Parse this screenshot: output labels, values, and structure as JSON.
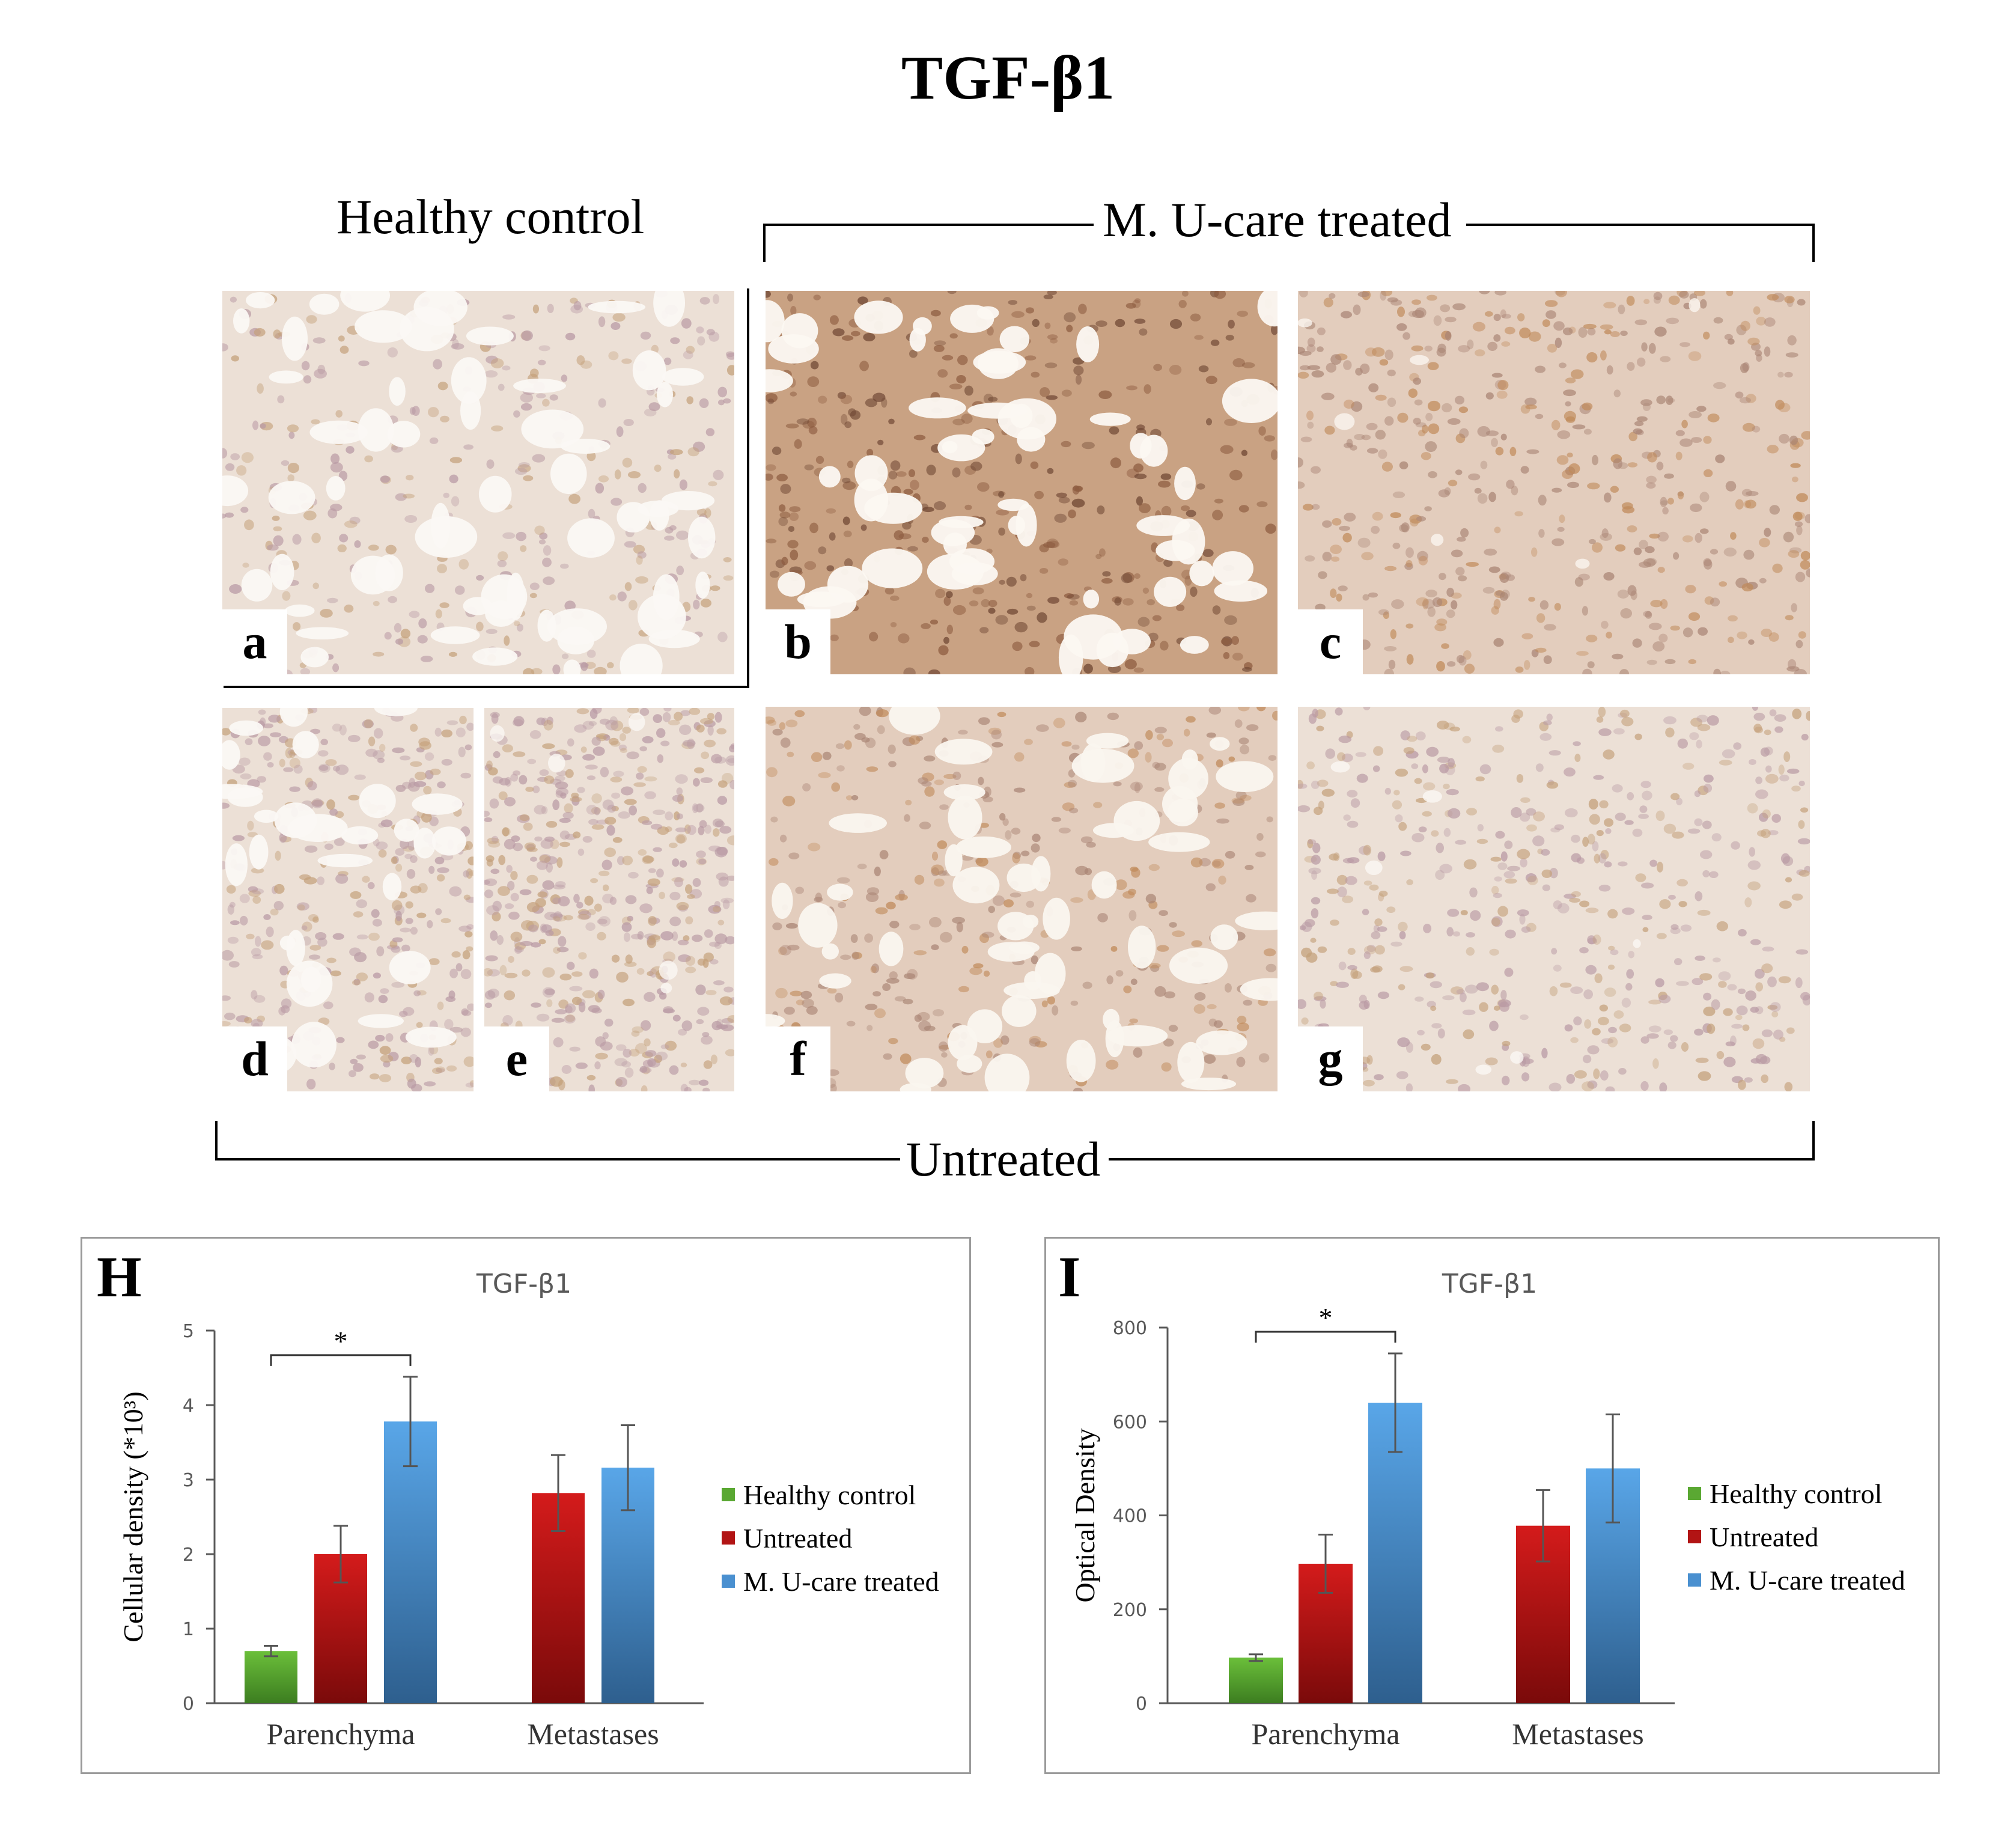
{
  "figure_title": "TGF-β1",
  "group_labels": {
    "healthy": "Healthy control",
    "treated": "M. U-care treated",
    "untreated": "Untreated"
  },
  "panels": [
    {
      "letter": "a",
      "stain": "light",
      "pattern": "alveolar"
    },
    {
      "letter": "b",
      "stain": "dark",
      "pattern": "alveolar"
    },
    {
      "letter": "c",
      "stain": "medium",
      "pattern": "solid"
    },
    {
      "letter": "d",
      "stain": "light",
      "pattern": "alveolar"
    },
    {
      "letter": "e",
      "stain": "light",
      "pattern": "solid"
    },
    {
      "letter": "f",
      "stain": "medium",
      "pattern": "alveolar"
    },
    {
      "letter": "g",
      "stain": "light",
      "pattern": "solid"
    }
  ],
  "colors": {
    "healthy": "#5aa832",
    "untreated": "#b21414",
    "treated": "#4a90d0",
    "axis": "#595959",
    "title": "#595959"
  },
  "chart_data": [
    {
      "panel_letter": "H",
      "type": "bar",
      "title": "TGF-β1",
      "xlabel": "",
      "ylabel": "Cellular density (*10³)",
      "ylim": [
        0,
        5
      ],
      "yticks": [
        0,
        1,
        2,
        3,
        4,
        5
      ],
      "categories": [
        "Parenchyma",
        "Metastases"
      ],
      "series": [
        {
          "name": "Healthy control",
          "values": [
            0.7,
            null
          ],
          "errors": [
            0.07,
            null
          ]
        },
        {
          "name": "Untreated",
          "values": [
            2.0,
            2.82
          ],
          "errors": [
            0.38,
            0.51
          ]
        },
        {
          "name": "M. U-care treated",
          "values": [
            3.78,
            3.16
          ],
          "errors": [
            0.6,
            0.57
          ]
        }
      ],
      "significance": {
        "label": "*",
        "category": "Parenchyma",
        "from_series": "Healthy control",
        "to_series": "M. U-care treated"
      },
      "legend_position": "right"
    },
    {
      "panel_letter": "I",
      "type": "bar",
      "title": "TGF-β1",
      "xlabel": "",
      "ylabel": "Optical Density",
      "ylim": [
        0,
        800
      ],
      "yticks": [
        0,
        200,
        400,
        600,
        800
      ],
      "categories": [
        "Parenchyma",
        "Metastases"
      ],
      "series": [
        {
          "name": "Healthy control",
          "values": [
            97,
            null
          ],
          "errors": [
            7,
            null
          ]
        },
        {
          "name": "Untreated",
          "values": [
            297,
            378
          ],
          "errors": [
            62,
            76
          ]
        },
        {
          "name": "M. U-care treated",
          "values": [
            640,
            500
          ],
          "errors": [
            105,
            115
          ]
        }
      ],
      "significance": {
        "label": "*",
        "category": "Parenchyma",
        "from_series": "Healthy control",
        "to_series": "M. U-care treated"
      },
      "legend_position": "right"
    }
  ]
}
